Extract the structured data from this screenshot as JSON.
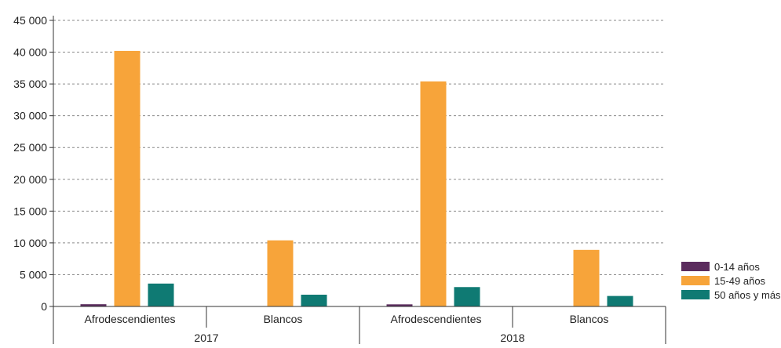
{
  "chart_data": {
    "type": "bar",
    "title": "",
    "xlabel": "",
    "ylabel": "",
    "ylim": [
      0,
      45000
    ],
    "yticks": [
      0,
      5000,
      10000,
      15000,
      20000,
      25000,
      30000,
      35000,
      40000,
      45000
    ],
    "ytick_labels": [
      "0",
      "5 000",
      "10 000",
      "15 000",
      "20 000",
      "25 000",
      "30 000",
      "35 000",
      "40 000",
      "45 000"
    ],
    "grid": "horizontal dashed",
    "legend_position": "right-bottom",
    "groups": [
      "2017",
      "2018"
    ],
    "categories": [
      "Afrodescendientes",
      "Blancos",
      "Afrodescendientes",
      "Blancos"
    ],
    "category_group": [
      "2017",
      "2017",
      "2018",
      "2018"
    ],
    "series": [
      {
        "name": "0-14 años",
        "color": "#5b2c5e",
        "values": [
          350,
          60,
          330,
          60
        ]
      },
      {
        "name": "15-49 años",
        "color": "#f7a43a",
        "values": [
          40200,
          10400,
          35400,
          8900
        ]
      },
      {
        "name": "50 años y más",
        "color": "#0f7a73",
        "values": [
          3600,
          1850,
          3050,
          1650
        ]
      }
    ]
  }
}
